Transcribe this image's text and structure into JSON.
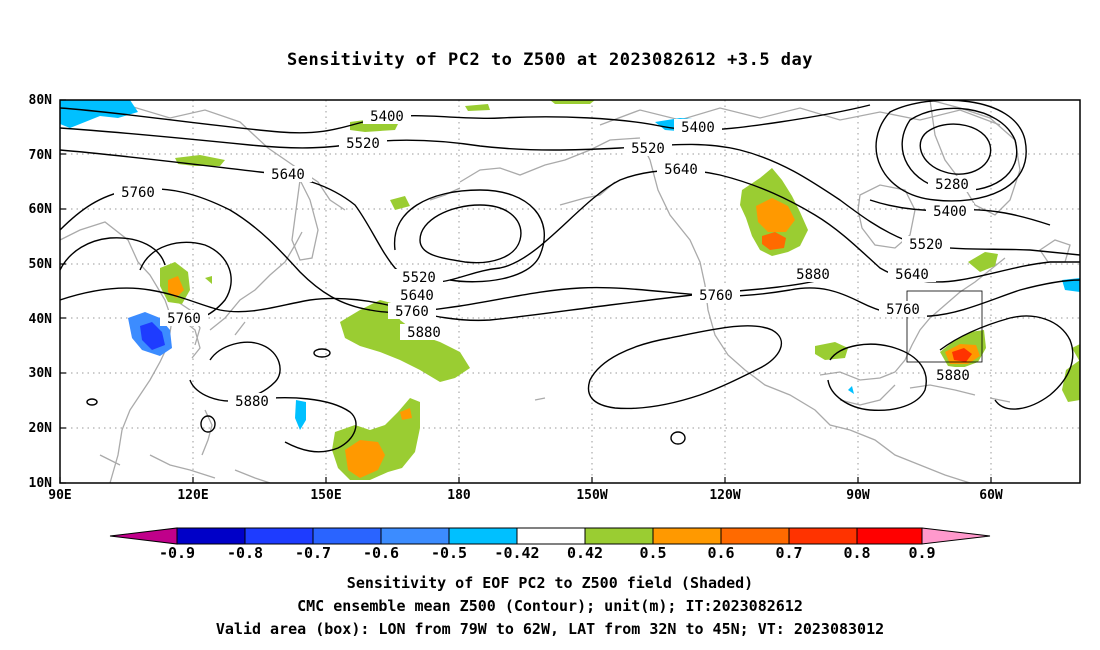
{
  "title": "Sensitivity of PC2 to Z500 at 2023082612 +3.5 day",
  "map": {
    "lon_labels": [
      "90E",
      "120E",
      "150E",
      "180",
      "150W",
      "120W",
      "90W",
      "60W"
    ],
    "lat_labels": [
      "80N",
      "70N",
      "60N",
      "50N",
      "40N",
      "30N",
      "20N",
      "10N"
    ],
    "contours": [
      {
        "label": "5280",
        "value": 5280
      },
      {
        "label": "5400",
        "value": 5400
      },
      {
        "label": "5520",
        "value": 5520
      },
      {
        "label": "5640",
        "value": 5640
      },
      {
        "label": "5760",
        "value": 5760
      },
      {
        "label": "5880",
        "value": 5880
      }
    ],
    "valid_box": {
      "lon_from": "79W",
      "lon_to": "62W",
      "lat_from": "32N",
      "lat_to": "45N"
    }
  },
  "colorbar": {
    "labels": [
      "-0.9",
      "-0.8",
      "-0.7",
      "-0.6",
      "-0.5",
      "-0.42",
      "0.42",
      "0.5",
      "0.6",
      "0.7",
      "0.8",
      "0.9"
    ],
    "colors": [
      "#c0008a",
      "#0000c8",
      "#1e3cff",
      "#2a64ff",
      "#3c8cff",
      "#00c0ff",
      "#ffffff",
      "#9acd32",
      "#ff9900",
      "#ff6a00",
      "#ff3300",
      "#ff0000",
      "#ff99cc"
    ]
  },
  "captions": {
    "line1": "Sensitivity of EOF PC2 to Z500 field (Shaded)",
    "line2": "CMC ensemble mean Z500 (Contour); unit(m); IT:2023082612",
    "line3": "Valid area (box): LON from 79W to 62W, LAT from 32N to 45N; VT: 2023083012"
  }
}
